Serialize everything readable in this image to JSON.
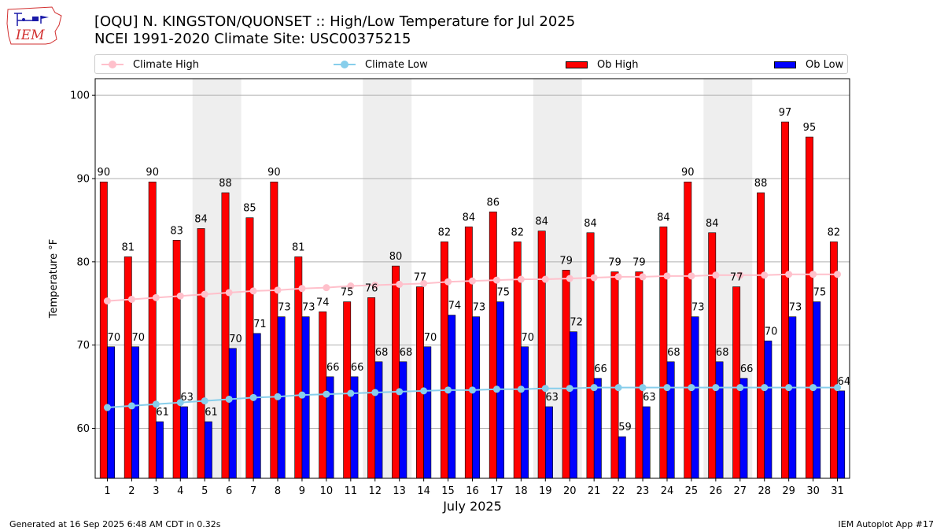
{
  "logo": {
    "text": "IEM"
  },
  "header": {
    "title_line1": "[OQU] N. KINGSTON/QUONSET :: High/Low Temperature for Jul 2025",
    "title_line2": "NCEI 1991-2020 Climate Site: USC00375215"
  },
  "legend": [
    {
      "label": "Climate High",
      "kind": "line",
      "color": "#ffc0cb"
    },
    {
      "label": "Climate Low",
      "kind": "line",
      "color": "#87ceeb"
    },
    {
      "label": "Ob High",
      "kind": "bar",
      "color": "#ff0000"
    },
    {
      "label": "Ob Low",
      "kind": "bar",
      "color": "#0000ff"
    }
  ],
  "footer": {
    "generated": "Generated at 16 Sep 2025 6:48 AM CDT in 0.32s",
    "app": "IEM Autoplot App #17"
  },
  "chart_data": {
    "type": "bar",
    "xlabel": "July 2025",
    "ylabel": "Temperature °F",
    "ylim": [
      54,
      102
    ],
    "yticks": [
      60,
      70,
      80,
      90,
      100
    ],
    "grid": true,
    "legend_position": "top",
    "weekend_shading_days": [
      5,
      6,
      12,
      13,
      19,
      20,
      26,
      27
    ],
    "categories": [
      "1",
      "2",
      "3",
      "4",
      "5",
      "6",
      "7",
      "8",
      "9",
      "10",
      "11",
      "12",
      "13",
      "14",
      "15",
      "16",
      "17",
      "18",
      "19",
      "20",
      "21",
      "22",
      "23",
      "24",
      "25",
      "26",
      "27",
      "28",
      "29",
      "30",
      "31"
    ],
    "series": [
      {
        "name": "Ob High",
        "type": "bar",
        "color": "#ff0000",
        "values": [
          90,
          81,
          90,
          83,
          84,
          88,
          85,
          90,
          81,
          74,
          75,
          76,
          80,
          77,
          82,
          84,
          86,
          82,
          84,
          79,
          84,
          79,
          79,
          84,
          90,
          84,
          77,
          88,
          97,
          95,
          82
        ],
        "plotted": [
          89.6,
          80.6,
          89.6,
          82.6,
          84.0,
          88.3,
          85.3,
          89.6,
          80.6,
          74.0,
          75.2,
          75.7,
          79.5,
          77.0,
          82.4,
          84.2,
          86.0,
          82.4,
          83.7,
          79.0,
          83.5,
          78.8,
          78.8,
          84.2,
          89.6,
          83.5,
          77.0,
          88.3,
          96.8,
          95.0,
          82.4
        ]
      },
      {
        "name": "Ob Low",
        "type": "bar",
        "color": "#0000ff",
        "values": [
          70,
          70,
          61,
          63,
          61,
          70,
          71,
          73,
          73,
          66,
          66,
          68,
          68,
          70,
          74,
          73,
          75,
          70,
          63,
          72,
          66,
          59,
          63,
          68,
          73,
          68,
          66,
          70,
          73,
          75,
          64
        ],
        "plotted": [
          69.8,
          69.8,
          60.8,
          62.6,
          60.8,
          69.6,
          71.4,
          73.4,
          73.4,
          66.2,
          66.2,
          68.0,
          68.0,
          69.8,
          73.6,
          73.4,
          75.2,
          69.8,
          62.6,
          71.6,
          66.0,
          59.0,
          62.6,
          68.0,
          73.4,
          68.0,
          66.0,
          70.5,
          73.4,
          75.2,
          64.5
        ]
      },
      {
        "name": "Climate High",
        "type": "line",
        "color": "#ffc0cb",
        "values": [
          75.3,
          75.5,
          75.7,
          75.9,
          76.1,
          76.3,
          76.5,
          76.6,
          76.8,
          76.9,
          77.1,
          77.2,
          77.3,
          77.4,
          77.6,
          77.7,
          77.8,
          77.9,
          77.9,
          78.0,
          78.1,
          78.2,
          78.2,
          78.3,
          78.3,
          78.4,
          78.4,
          78.4,
          78.5,
          78.5,
          78.5
        ]
      },
      {
        "name": "Climate Low",
        "type": "line",
        "color": "#87ceeb",
        "values": [
          62.5,
          62.7,
          62.9,
          63.1,
          63.3,
          63.5,
          63.7,
          63.8,
          64.0,
          64.1,
          64.2,
          64.3,
          64.4,
          64.5,
          64.6,
          64.6,
          64.7,
          64.7,
          64.8,
          64.8,
          64.9,
          64.9,
          64.9,
          64.9,
          64.9,
          64.9,
          64.9,
          64.9,
          64.9,
          64.9,
          64.9
        ]
      }
    ]
  }
}
